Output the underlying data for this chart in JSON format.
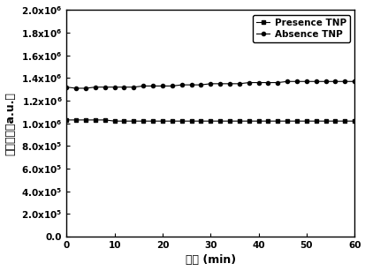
{
  "x_presence": [
    0,
    2,
    4,
    6,
    8,
    10,
    12,
    14,
    16,
    18,
    20,
    22,
    24,
    26,
    28,
    30,
    32,
    34,
    36,
    38,
    40,
    42,
    44,
    46,
    48,
    50,
    52,
    54,
    56,
    58,
    60
  ],
  "y_presence": [
    1030000.0,
    1030000.0,
    1030000.0,
    1030000.0,
    1030000.0,
    1020000.0,
    1020000.0,
    1020000.0,
    1020000.0,
    1020000.0,
    1020000.0,
    1020000.0,
    1020000.0,
    1020000.0,
    1020000.0,
    1020000.0,
    1020000.0,
    1020000.0,
    1020000.0,
    1020000.0,
    1020000.0,
    1020000.0,
    1020000.0,
    1020000.0,
    1020000.0,
    1020000.0,
    1020000.0,
    1020000.0,
    1020000.0,
    1020000.0,
    1020000.0
  ],
  "x_absence": [
    0,
    2,
    4,
    6,
    8,
    10,
    12,
    14,
    16,
    18,
    20,
    22,
    24,
    26,
    28,
    30,
    32,
    34,
    36,
    38,
    40,
    42,
    44,
    46,
    48,
    50,
    52,
    54,
    56,
    58,
    60
  ],
  "y_absence": [
    1320000.0,
    1310000.0,
    1310000.0,
    1320000.0,
    1320000.0,
    1320000.0,
    1320000.0,
    1320000.0,
    1330000.0,
    1330000.0,
    1330000.0,
    1330000.0,
    1340000.0,
    1340000.0,
    1340000.0,
    1350000.0,
    1350000.0,
    1350000.0,
    1350000.0,
    1360000.0,
    1360000.0,
    1360000.0,
    1360000.0,
    1370000.0,
    1370000.0,
    1370000.0,
    1370000.0,
    1370000.0,
    1370000.0,
    1370000.0,
    1370000.0
  ],
  "xlabel": "时间 (min)",
  "ylabel": "荺光强度（a.u.）",
  "legend_presence": "Presence TNP",
  "legend_absence": "Absence TNP",
  "xlim": [
    0,
    60
  ],
  "ylim": [
    0,
    2000000.0
  ],
  "xticks": [
    0,
    10,
    20,
    30,
    40,
    50,
    60
  ],
  "ytick_values": [
    0,
    200000,
    400000,
    600000,
    800000,
    1000000,
    1200000,
    1400000,
    1600000,
    1800000,
    2000000
  ],
  "ytick_labels": [
    "0.0",
    "2.0x10$^5$",
    "4.0x10$^5$",
    "6.0x10$^5$",
    "8.0x10$^5$",
    "1.0x10$^6$",
    "1.2x10$^6$",
    "1.4x10$^6$",
    "1.6x10$^6$",
    "1.8x10$^6$",
    "2.0x10$^6$"
  ],
  "line_color": "#000000",
  "marker_presence": "s",
  "marker_absence": "o",
  "marker_size": 3.0,
  "line_width": 0.8,
  "background_color": "#ffffff",
  "font_weight": "bold",
  "tick_fontsize": 7.5,
  "label_fontsize": 9,
  "legend_fontsize": 7.5
}
